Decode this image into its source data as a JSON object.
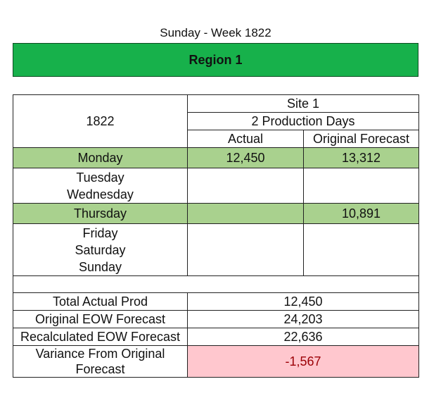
{
  "title": "Sunday - Week 1822",
  "region": "Region 1",
  "table": {
    "week": "1822",
    "site": "Site 1",
    "production_days": "2 Production Days",
    "col_actual": "Actual",
    "col_forecast": "Original Forecast",
    "days": {
      "monday": {
        "label": "Monday",
        "actual": "12,450",
        "forecast": "13,312"
      },
      "tuesday": {
        "label": "Tuesday"
      },
      "wednesday": {
        "label": "Wednesday"
      },
      "thursday": {
        "label": "Thursday",
        "actual": "",
        "forecast": "10,891"
      },
      "friday": {
        "label": "Friday"
      },
      "saturday": {
        "label": "Saturday"
      },
      "sunday": {
        "label": "Sunday"
      }
    },
    "totals": {
      "total_actual": {
        "label": "Total Actual Prod",
        "value": "12,450"
      },
      "original_eow": {
        "label": "Original EOW Forecast",
        "value": "24,203"
      },
      "recalculated_eow": {
        "label": "Recalculated EOW Forecast",
        "value": "22,636"
      },
      "variance": {
        "label": "Variance From Original Forecast",
        "value": "-1,567"
      }
    }
  },
  "colors": {
    "region_bar": "#17b14b",
    "highlight_row": "#a9d18e",
    "variance_bg": "#ffc7ce",
    "variance_text": "#9c0006"
  }
}
